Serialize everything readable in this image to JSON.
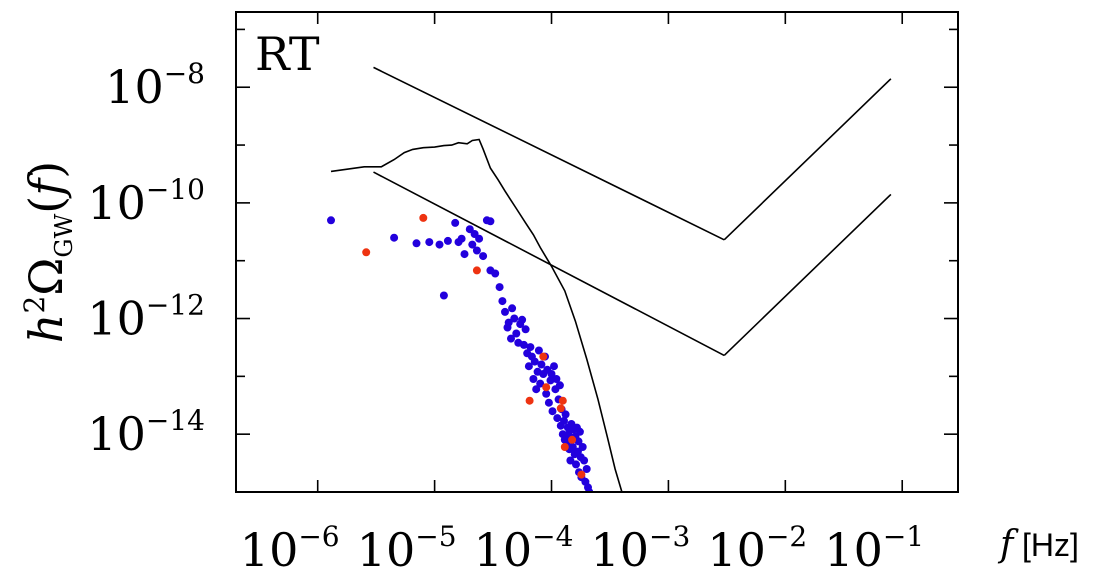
{
  "chart_data": {
    "type": "scatter",
    "panel_label": "RT",
    "xlabel": "f [Hz]",
    "ylabel": "h²Ω_GW(f)",
    "xscale": "log",
    "yscale": "log",
    "xlim": [
      2e-07,
      0.3
    ],
    "ylim": [
      1e-15,
      2e-07
    ],
    "x_ticks": [
      {
        "value": 1e-06,
        "exp": "−6"
      },
      {
        "value": 1e-05,
        "exp": "−5"
      },
      {
        "value": 0.0001,
        "exp": "−4"
      },
      {
        "value": 0.001,
        "exp": "−3"
      },
      {
        "value": 0.01,
        "exp": "−2"
      },
      {
        "value": 0.1,
        "exp": "−1"
      }
    ],
    "y_ticks": [
      {
        "value": 1e-08,
        "exp": "−8"
      },
      {
        "value": 1e-10,
        "exp": "−10"
      },
      {
        "value": 1e-12,
        "exp": "−12"
      },
      {
        "value": 1e-14,
        "exp": "−14"
      }
    ],
    "grid": false,
    "lines": [
      {
        "name": "upper sensitivity curve",
        "color": "#000000",
        "points": [
          [
            3e-06,
            2.2e-08
          ],
          [
            0.003,
            2.3e-11
          ]
        ],
        "points2": [
          [
            0.003,
            2.3e-11
          ],
          [
            0.08,
            1.4e-08
          ]
        ]
      },
      {
        "name": "lower sensitivity curve",
        "color": "#000000",
        "points": [
          [
            3e-06,
            3.4e-10
          ],
          [
            0.003,
            2.3e-13
          ]
        ],
        "points2": [
          [
            0.003,
            2.3e-13
          ],
          [
            0.08,
            1.4e-10
          ]
        ]
      },
      {
        "name": "peaked spectrum",
        "color": "#000000",
        "points": [
          [
            1.3e-06,
            3.5e-10
          ],
          [
            2.5e-06,
            4.2e-10
          ],
          [
            3.5e-06,
            4.2e-10
          ],
          [
            4.5e-06,
            5.6e-10
          ],
          [
            5.5e-06,
            7.4e-10
          ],
          [
            6.5e-06,
            8.4e-10
          ],
          [
            8e-06,
            9e-10
          ],
          [
            1e-05,
            9.2e-10
          ],
          [
            1.2e-05,
            9.8e-10
          ],
          [
            1.4e-05,
            1e-09
          ],
          [
            1.6e-05,
            1.1e-09
          ],
          [
            1.9e-05,
            1.05e-09
          ],
          [
            2.1e-05,
            1.2e-09
          ],
          [
            2.4e-05,
            1.25e-09
          ],
          [
            2.6e-05,
            8.5e-10
          ],
          [
            3e-05,
            4e-10
          ],
          [
            3.5e-05,
            2.5e-10
          ],
          [
            4e-05,
            1.6e-10
          ],
          [
            5e-05,
            8e-11
          ],
          [
            6e-05,
            4.5e-11
          ],
          [
            7e-05,
            2.8e-11
          ],
          [
            8e-05,
            1.7e-11
          ],
          [
            0.0001,
            8e-12
          ],
          [
            0.00013,
            3e-12
          ],
          [
            0.00016,
            9e-13
          ],
          [
            0.0002,
            2e-13
          ],
          [
            0.00025,
            4e-14
          ],
          [
            0.0003,
            9e-15
          ],
          [
            0.00035,
            2.5e-15
          ],
          [
            0.0004,
            1e-15
          ]
        ]
      }
    ],
    "series": [
      {
        "name": "blue points",
        "color": "#2200dd",
        "points": [
          [
            1.3e-06,
            5e-11
          ],
          [
            4.5e-06,
            2.5e-11
          ],
          [
            7e-06,
            2e-11
          ],
          [
            9e-06,
            2.1e-11
          ],
          [
            1.1e-05,
            1.9e-11
          ],
          [
            1.2e-05,
            2.5e-12
          ],
          [
            1.3e-05,
            2.2e-11
          ],
          [
            1.5e-05,
            4.5e-11
          ],
          [
            1.6e-05,
            2.1e-11
          ],
          [
            1.7e-05,
            2.4e-11
          ],
          [
            1.8e-05,
            1.3e-11
          ],
          [
            2e-05,
            3.5e-11
          ],
          [
            2.1e-05,
            1.9e-11
          ],
          [
            2.2e-05,
            2.9e-11
          ],
          [
            2.3e-05,
            1.5e-11
          ],
          [
            2.4e-05,
            2.4e-11
          ],
          [
            2.6e-05,
            1.2e-11
          ],
          [
            2.8e-05,
            5e-11
          ],
          [
            3e-05,
            4.8e-11
          ],
          [
            3e-05,
            6.8e-12
          ],
          [
            3.3e-05,
            6e-12
          ],
          [
            3.6e-05,
            3.5e-12
          ],
          [
            3.8e-05,
            2e-12
          ],
          [
            4e-05,
            1.3e-12
          ],
          [
            4.2e-05,
            7e-13
          ],
          [
            4.3e-05,
            8.5e-13
          ],
          [
            4.5e-05,
            4.5e-13
          ],
          [
            4.6e-05,
            1.5e-12
          ],
          [
            4.8e-05,
            1e-12
          ],
          [
            5e-05,
            5.5e-13
          ],
          [
            5.2e-05,
            3.8e-13
          ],
          [
            5.4e-05,
            8e-13
          ],
          [
            5.6e-05,
            9.5e-13
          ],
          [
            5.8e-05,
            3.5e-13
          ],
          [
            6e-05,
            6.5e-13
          ],
          [
            6.2e-05,
            2.5e-13
          ],
          [
            6.4e-05,
            1.5e-13
          ],
          [
            6.6e-05,
            3.2e-13
          ],
          [
            6.8e-05,
            2.2e-13
          ],
          [
            7e-05,
            9e-14
          ],
          [
            7.2e-05,
            1.8e-13
          ],
          [
            7.4e-05,
            6e-14
          ],
          [
            7.6e-05,
            1.2e-13
          ],
          [
            7.8e-05,
            2.8e-13
          ],
          [
            8e-05,
            7.5e-14
          ],
          [
            8.2e-05,
            1.6e-13
          ],
          [
            8.5e-05,
            1.1e-13
          ],
          [
            8.8e-05,
            2.2e-13
          ],
          [
            9e-05,
            5e-14
          ],
          [
            9.2e-05,
            1.3e-13
          ],
          [
            9.5e-05,
            3.5e-14
          ],
          [
            9.8e-05,
            8.5e-14
          ],
          [
            0.0001,
            1.1e-13
          ],
          [
            0.000102,
            2.5e-14
          ],
          [
            0.000105,
            1.5e-13
          ],
          [
            0.000108,
            6e-14
          ],
          [
            0.00011,
            9e-14
          ],
          [
            0.000112,
            1.9e-14
          ],
          [
            0.000115,
            4e-14
          ],
          [
            0.000118,
            7e-14
          ],
          [
            0.00012,
            1.4e-14
          ],
          [
            0.000122,
            2.7e-14
          ],
          [
            0.000125,
            1e-14
          ],
          [
            0.000128,
            1.7e-14
          ],
          [
            0.00013,
            8e-15
          ],
          [
            0.000132,
            2.2e-14
          ],
          [
            0.000135,
            6.5e-15
          ],
          [
            0.000138,
            1.3e-14
          ],
          [
            0.00014,
            1e-14
          ],
          [
            0.000142,
            5.5e-15
          ],
          [
            0.000145,
            3.5e-15
          ],
          [
            0.000148,
            1.5e-14
          ],
          [
            0.00015,
            8.5e-15
          ],
          [
            0.000152,
            6e-15
          ],
          [
            0.000155,
            1.2e-14
          ],
          [
            0.000158,
            4.5e-15
          ],
          [
            0.00016,
            9e-15
          ],
          [
            0.000162,
            3e-15
          ],
          [
            0.000165,
            1.3e-14
          ],
          [
            0.000168,
            5e-15
          ],
          [
            0.00017,
            7.5e-15
          ],
          [
            0.000172,
            2.2e-15
          ],
          [
            0.000175,
            1.1e-14
          ],
          [
            0.000178,
            4e-15
          ],
          [
            0.00018,
            1.8e-15
          ],
          [
            0.000185,
            6e-15
          ],
          [
            0.00019,
            3.5e-15
          ],
          [
            0.000195,
            1.5e-15
          ],
          [
            0.0002,
            2.5e-15
          ],
          [
            0.000205,
            1.2e-15
          ],
          [
            0.00021,
            1e-15
          ]
        ]
      },
      {
        "name": "red points",
        "color": "#ee3311",
        "points": [
          [
            2.6e-06,
            1.4e-11
          ],
          [
            8e-06,
            5.5e-11
          ],
          [
            2.3e-05,
            6.8e-12
          ],
          [
            6.5e-05,
            3.8e-14
          ],
          [
            8.5e-05,
            2.2e-13
          ],
          [
            9e-05,
            6.5e-14
          ],
          [
            0.00012,
            2.8e-14
          ],
          [
            0.000125,
            3.8e-14
          ],
          [
            0.00013,
            6e-15
          ],
          [
            0.00015,
            8e-15
          ],
          [
            0.00018,
            2e-15
          ]
        ]
      }
    ]
  }
}
